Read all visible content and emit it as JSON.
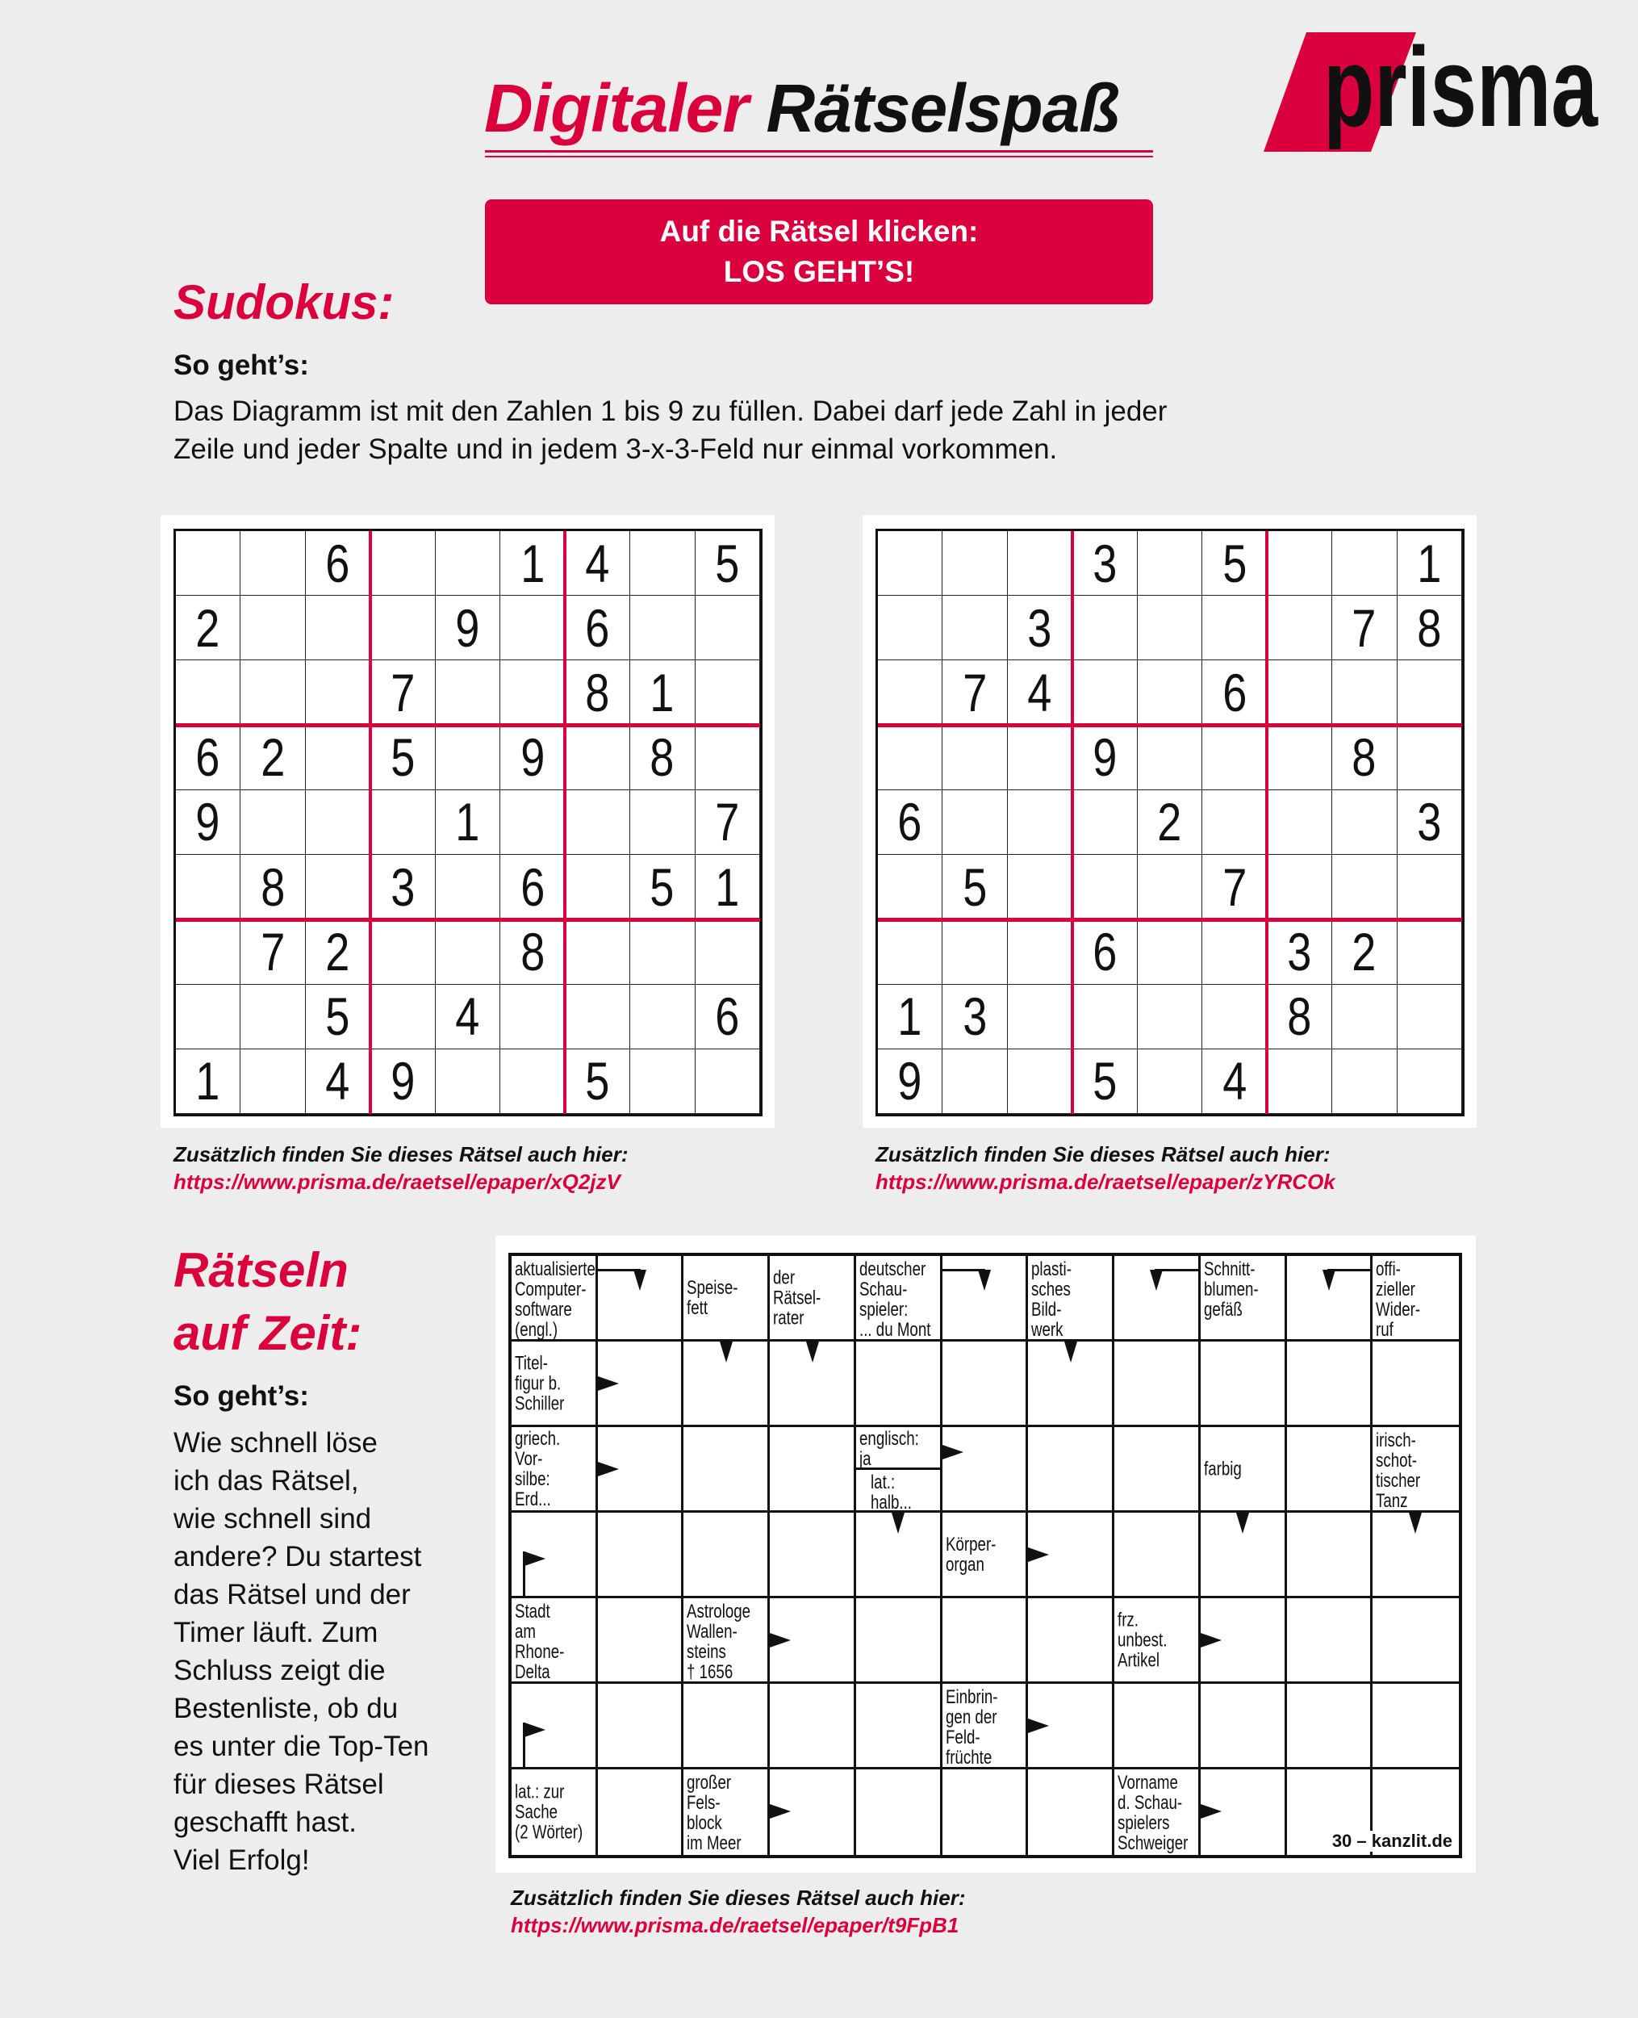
{
  "header": {
    "title_red": "Digitaler",
    "title_black": "Rätselspaß",
    "logo_text": "prisma",
    "cta_line1": "Auf die Rätsel klicken:",
    "cta_line2": "LOS GEHT’S!"
  },
  "colors": {
    "accent": "#d9003d",
    "background": "#ededed"
  },
  "sudoku_section": {
    "heading": "Sudokus:",
    "howto_label": "So geht’s:",
    "instructions": [
      "Das Diagramm ist mit den Zahlen 1 bis 9 zu füllen. Dabei darf jede Zahl in jeder",
      "Zeile und jeder Spalte und in jedem 3-x-3-Feld nur einmal vorkommen."
    ],
    "puzzles": [
      {
        "grid": [
          [
            0,
            0,
            6,
            0,
            0,
            1,
            4,
            0,
            5
          ],
          [
            2,
            0,
            0,
            0,
            9,
            0,
            6,
            0,
            0
          ],
          [
            0,
            0,
            0,
            7,
            0,
            0,
            8,
            1,
            0
          ],
          [
            6,
            2,
            0,
            5,
            0,
            9,
            0,
            8,
            0
          ],
          [
            9,
            0,
            0,
            0,
            1,
            0,
            0,
            0,
            7
          ],
          [
            0,
            8,
            0,
            3,
            0,
            6,
            0,
            5,
            1
          ],
          [
            0,
            7,
            2,
            0,
            0,
            8,
            0,
            0,
            0
          ],
          [
            0,
            0,
            5,
            0,
            4,
            0,
            0,
            0,
            6
          ],
          [
            1,
            0,
            4,
            9,
            0,
            0,
            5,
            0,
            0
          ]
        ],
        "caption": "Zusätzlich finden Sie dieses Rätsel auch hier:",
        "link": "https://www.prisma.de/raetsel/epaper/xQ2jzV"
      },
      {
        "grid": [
          [
            0,
            0,
            0,
            3,
            0,
            5,
            0,
            0,
            1
          ],
          [
            0,
            0,
            3,
            0,
            0,
            0,
            0,
            7,
            8
          ],
          [
            0,
            7,
            4,
            0,
            0,
            6,
            0,
            0,
            0
          ],
          [
            0,
            0,
            0,
            9,
            0,
            0,
            0,
            8,
            0
          ],
          [
            6,
            0,
            0,
            0,
            2,
            0,
            0,
            0,
            3
          ],
          [
            0,
            5,
            0,
            0,
            0,
            7,
            0,
            0,
            0
          ],
          [
            0,
            0,
            0,
            6,
            0,
            0,
            3,
            2,
            0
          ],
          [
            1,
            3,
            0,
            0,
            0,
            0,
            8,
            0,
            0
          ],
          [
            9,
            0,
            0,
            5,
            0,
            4,
            0,
            0,
            0
          ]
        ],
        "caption": "Zusätzlich finden Sie dieses Rätsel auch hier:",
        "link": "https://www.prisma.de/raetsel/epaper/zYRCOk"
      }
    ]
  },
  "timed_section": {
    "heading_line1": "Rätseln",
    "heading_line2": "auf Zeit:",
    "howto_label": "So geht’s:",
    "instructions": [
      "Wie schnell löse",
      "ich das Rätsel,",
      "wie schnell sind",
      "andere? Du startest",
      "das Rätsel und der",
      "Timer läuft. Zum",
      "Schluss zeigt die",
      "Bestenliste, ob du",
      "es unter die Top-Ten",
      "für dieses Rätsel",
      "geschafft hast.",
      "Viel Erfolg!"
    ],
    "crossword": {
      "credit": "30 – kanzlit.de",
      "rows": [
        [
          {
            "clue": "aktualisierte\nComputer-\nsoftware\n(engl.)"
          },
          {
            "arrow": "corner-left-down"
          },
          {
            "clue": "Speise-\nfett",
            "mid": true
          },
          {
            "clue": "der\nRätsel-\nrater",
            "mid": true
          },
          {
            "clue": "deutscher\nSchau-\nspieler:\n... du Mont"
          },
          {
            "arrow": "corner-left-down"
          },
          {
            "clue": "plasti-\nsches\nBild-\nwerk"
          },
          {
            "arrow": "corner-right-down"
          },
          {
            "clue": "Schnitt-\nblumen-\ngefäß"
          },
          {
            "arrow": "corner-right-down"
          },
          {
            "clue": "offi-\nzieller\nWider-\nruf"
          }
        ],
        [
          {
            "clue": "Titel-\nfigur b.\nSchiller",
            "mid": true
          },
          {
            "arrow": "right"
          },
          {
            "arrow": "down"
          },
          {
            "arrow": "down"
          },
          {},
          {},
          {
            "arrow": "down"
          },
          {},
          {},
          {},
          {}
        ],
        [
          {
            "clue": "griech.\nVor-\nsilbe:\nErd...",
            "mid": true
          },
          {
            "arrow": "right"
          },
          {},
          {},
          {
            "clue": "englisch:\nja",
            "clue2": "lat.:\nhalb..."
          },
          {
            "arrow": "right-upper"
          },
          {},
          {},
          {
            "clue": "farbig",
            "mid": true
          },
          {},
          {
            "clue": "irisch-\nschot-\ntischer\nTanz"
          }
        ],
        [
          {
            "arrow": "flag"
          },
          {},
          {},
          {},
          {
            "arrow": "down"
          },
          {
            "clue": "Körper-\norgan",
            "mid": true
          },
          {
            "arrow": "right"
          },
          {},
          {
            "arrow": "down"
          },
          {},
          {
            "arrow": "down"
          }
        ],
        [
          {
            "clue": "Stadt\nam\nRhone-\nDelta"
          },
          {},
          {
            "clue": "Astrologe\nWallen-\nsteins\n† 1656"
          },
          {
            "arrow": "right"
          },
          {},
          {},
          {},
          {
            "clue": "frz.\nunbest.\nArtikel",
            "mid": true
          },
          {
            "arrow": "right"
          },
          {},
          {}
        ],
        [
          {
            "arrow": "flag"
          },
          {},
          {},
          {},
          {},
          {
            "clue": "Einbrin-\ngen der\nFeld-\nfrüchte"
          },
          {
            "arrow": "right"
          },
          {},
          {},
          {},
          {}
        ],
        [
          {
            "clue": "lat.: zur\nSache\n(2 Wörter)",
            "mid": true
          },
          {},
          {
            "clue": "großer\nFels-\nblock\nim Meer"
          },
          {
            "arrow": "right"
          },
          {},
          {},
          {},
          {
            "clue": "Vorname\nd. Schau-\nspielers\nSchweiger"
          },
          {
            "arrow": "right"
          },
          {},
          {}
        ]
      ]
    },
    "caption": "Zusätzlich finden Sie dieses Rätsel auch hier:",
    "link": "https://www.prisma.de/raetsel/epaper/t9FpB1"
  }
}
